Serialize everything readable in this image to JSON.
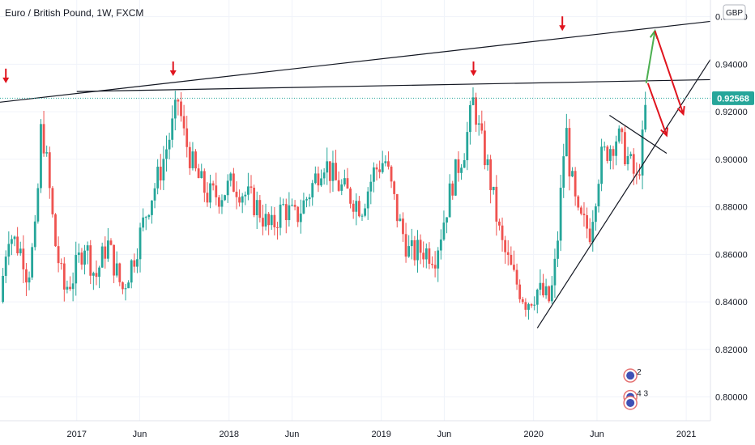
{
  "chart_data": {
    "type": "candlestick",
    "title": "Euro / British Pound, 1W, FXCM",
    "currency_badge": "GBP",
    "current_price": "0.92568",
    "x_ticks": [
      {
        "label": "2017",
        "date": "2017-01-01"
      },
      {
        "label": "Jun",
        "date": "2017-06-01"
      },
      {
        "label": "2018",
        "date": "2018-01-01"
      },
      {
        "label": "Jun",
        "date": "2018-06-01"
      },
      {
        "label": "2019",
        "date": "2019-01-01"
      },
      {
        "label": "Jun",
        "date": "2019-06-01"
      },
      {
        "label": "2020",
        "date": "2020-01-01"
      },
      {
        "label": "Jun",
        "date": "2020-06-01"
      },
      {
        "label": "2021",
        "date": "2021-01-01"
      }
    ],
    "y_ticks": [
      {
        "label": "0.80000",
        "value": 0.8
      },
      {
        "label": "0.82000",
        "value": 0.82
      },
      {
        "label": "0.84000",
        "value": 0.84
      },
      {
        "label": "0.86000",
        "value": 0.86
      },
      {
        "label": "0.88000",
        "value": 0.88
      },
      {
        "label": "0.90000",
        "value": 0.9
      },
      {
        "label": "0.92000",
        "value": 0.92
      },
      {
        "label": "0.94000",
        "value": 0.94
      },
      {
        "label": "0.96000",
        "value": 0.96
      }
    ],
    "ylim": [
      0.79,
      0.967
    ],
    "xlim": [
      "2016-07-01",
      "2021-02-28"
    ],
    "colors": {
      "up": "#26a69a",
      "down": "#ef5350",
      "arrow_red": "#e0141e",
      "arrow_green": "#4caf50",
      "line": "#131722",
      "price_tag": "#26a69a"
    },
    "price_path": [
      [
        "2016-07-01",
        0.84
      ],
      [
        "2016-07-20",
        0.87
      ],
      [
        "2016-08-25",
        0.86
      ],
      [
        "2016-09-05",
        0.85
      ],
      [
        "2016-09-25",
        0.87
      ],
      [
        "2016-10-08",
        0.915
      ],
      [
        "2016-10-20",
        0.9
      ],
      [
        "2016-11-10",
        0.865
      ],
      [
        "2016-12-01",
        0.845
      ],
      [
        "2016-12-22",
        0.85
      ],
      [
        "2017-01-20",
        0.865
      ],
      [
        "2017-02-15",
        0.85
      ],
      [
        "2017-03-15",
        0.865
      ],
      [
        "2017-04-20",
        0.845
      ],
      [
        "2017-05-20",
        0.86
      ],
      [
        "2017-06-20",
        0.88
      ],
      [
        "2017-07-20",
        0.895
      ],
      [
        "2017-08-20",
        0.915
      ],
      [
        "2017-09-01",
        0.925
      ],
      [
        "2017-09-15",
        0.91
      ],
      [
        "2017-10-10",
        0.895
      ],
      [
        "2017-11-10",
        0.885
      ],
      [
        "2017-12-10",
        0.885
      ],
      [
        "2018-01-10",
        0.89
      ],
      [
        "2018-02-10",
        0.885
      ],
      [
        "2018-03-10",
        0.88
      ],
      [
        "2018-04-10",
        0.87
      ],
      [
        "2018-05-10",
        0.88
      ],
      [
        "2018-06-10",
        0.875
      ],
      [
        "2018-07-10",
        0.885
      ],
      [
        "2018-08-15",
        0.9
      ],
      [
        "2018-09-15",
        0.89
      ],
      [
        "2018-10-15",
        0.885
      ],
      [
        "2018-11-15",
        0.88
      ],
      [
        "2018-12-15",
        0.895
      ],
      [
        "2019-01-10",
        0.9
      ],
      [
        "2019-02-10",
        0.875
      ],
      [
        "2019-03-10",
        0.86
      ],
      [
        "2019-04-10",
        0.862
      ],
      [
        "2019-05-10",
        0.86
      ],
      [
        "2019-05-25",
        0.87
      ],
      [
        "2019-06-20",
        0.89
      ],
      [
        "2019-07-20",
        0.905
      ],
      [
        "2019-08-10",
        0.925
      ],
      [
        "2019-08-25",
        0.91
      ],
      [
        "2019-09-15",
        0.895
      ],
      [
        "2019-10-15",
        0.865
      ],
      [
        "2019-11-15",
        0.85
      ],
      [
        "2019-12-15",
        0.84
      ],
      [
        "2020-01-10",
        0.845
      ],
      [
        "2020-02-10",
        0.84
      ],
      [
        "2020-02-25",
        0.86
      ],
      [
        "2020-03-18",
        0.915
      ],
      [
        "2020-03-25",
        0.9
      ],
      [
        "2020-04-15",
        0.875
      ],
      [
        "2020-05-15",
        0.87
      ],
      [
        "2020-06-10",
        0.9
      ],
      [
        "2020-07-01",
        0.905
      ],
      [
        "2020-07-20",
        0.91
      ],
      [
        "2020-08-15",
        0.9
      ],
      [
        "2020-09-05",
        0.89
      ],
      [
        "2020-09-20",
        0.91
      ],
      [
        "2020-09-27",
        0.925
      ]
    ],
    "drawn_lines": [
      {
        "name": "upper-trendline",
        "points": [
          [
            "2016-07-01",
            0.924
          ],
          [
            "2021-02-28",
            0.958
          ]
        ]
      },
      {
        "name": "horizontal-resistance",
        "points": [
          [
            "2017-01-01",
            0.9285
          ],
          [
            "2021-02-28",
            0.9335
          ]
        ]
      },
      {
        "name": "rising-support",
        "points": [
          [
            "2020-01-10",
            0.829
          ],
          [
            "2021-02-28",
            0.942
          ]
        ]
      },
      {
        "name": "wedge-upper",
        "points": [
          [
            "2020-07-01",
            0.9185
          ],
          [
            "2020-11-15",
            0.9025
          ]
        ]
      }
    ],
    "arrows": [
      {
        "name": "peak-arrow-2016",
        "date": "2016-07-15",
        "value": 0.932,
        "direction": "down",
        "color": "red"
      },
      {
        "name": "peak-arrow-2017",
        "date": "2017-08-20",
        "value": 0.935,
        "direction": "down",
        "color": "red"
      },
      {
        "name": "peak-arrow-2019",
        "date": "2019-08-10",
        "value": 0.935,
        "direction": "down",
        "color": "red"
      },
      {
        "name": "peak-arrow-2020",
        "date": "2020-03-10",
        "value": 0.954,
        "direction": "down",
        "color": "red"
      }
    ],
    "projection": [
      {
        "name": "green-up-arrow",
        "from": [
          "2020-09-27",
          0.932
        ],
        "to": [
          "2020-10-18",
          0.954
        ],
        "color": "green"
      },
      {
        "name": "red-down-arrow-1",
        "from": [
          "2020-10-18",
          0.954
        ],
        "to": [
          "2020-12-25",
          0.919
        ],
        "color": "red"
      },
      {
        "name": "red-down-arrow-2",
        "from": [
          "2020-10-01",
          0.932
        ],
        "to": [
          "2020-11-15",
          0.91
        ],
        "color": "red"
      }
    ],
    "event_badges": [
      {
        "name": "event-badge-top",
        "label": "2",
        "date": "2020-08-20",
        "value": 0.809
      },
      {
        "name": "event-badge-bottom",
        "label": "4 3",
        "date": "2020-08-20",
        "value": 0.8
      },
      {
        "name": "event-badge-lower",
        "label": "",
        "date": "2020-08-20",
        "value": 0.7975
      }
    ]
  }
}
